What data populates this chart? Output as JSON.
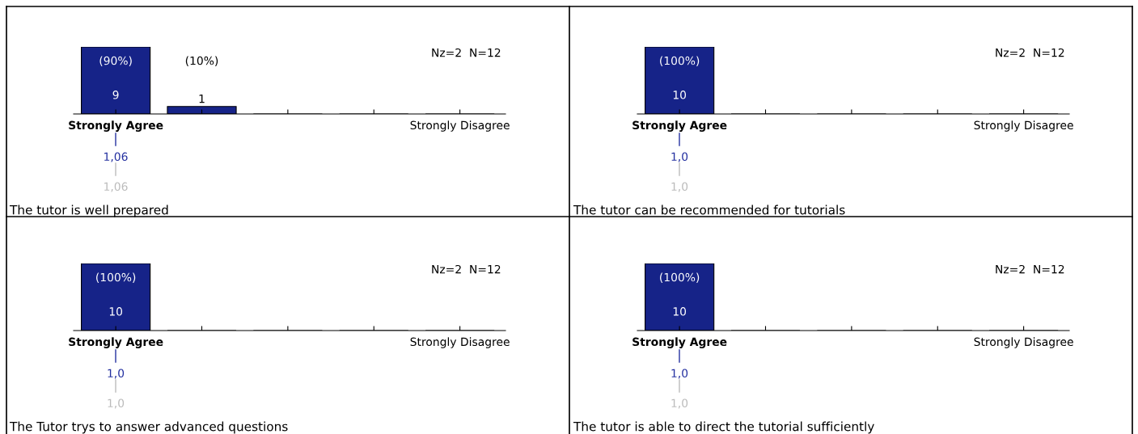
{
  "chart_data": [
    {
      "type": "bar",
      "title": "The tutor is well prepared",
      "categories": [
        "Strongly Agree",
        null,
        null,
        null,
        "Strongly Disagree"
      ],
      "values": [
        9,
        1,
        0,
        0,
        0
      ],
      "color": "#162388",
      "value_labels": [
        "9",
        "1",
        null,
        null,
        null
      ],
      "annotations": [
        "Nz=2  N=12",
        "1,06",
        "1,06",
        "(90%)",
        "(10%)"
      ]
    },
    {
      "type": "bar",
      "title": "The tutor can be recommended for tutorials",
      "categories": [
        "Strongly Agree",
        null,
        null,
        null,
        "Strongly Disagree"
      ],
      "values": [
        10,
        0,
        0,
        0,
        0
      ],
      "color": "#162388",
      "value_labels": [
        "10",
        null,
        null,
        null,
        null
      ],
      "annotations": [
        "Nz=2  N=12",
        "1,0",
        "1,0",
        "(100%)"
      ]
    },
    {
      "type": "bar",
      "title": "The Tutor trys to answer advanced questions",
      "categories": [
        "Strongly Agree",
        null,
        null,
        null,
        "Strongly Disagree"
      ],
      "values": [
        10,
        0,
        0,
        0,
        0
      ],
      "color": "#162388",
      "value_labels": [
        "10",
        null,
        null,
        null,
        null
      ],
      "annotations": [
        "Nz=2  N=12",
        "1,0",
        "1,0",
        "(100%)"
      ]
    },
    {
      "type": "bar",
      "title": "The tutor is able to direct the tutorial sufficiently",
      "categories": [
        "Strongly Agree",
        null,
        null,
        null,
        "Strongly Disagree"
      ],
      "values": [
        10,
        0,
        0,
        0,
        0
      ],
      "color": "#162388",
      "value_labels": [
        "10",
        null,
        null,
        null,
        null
      ],
      "annotations": [
        "Nz=2  N=12",
        "1,0",
        "1,0",
        "(100%)"
      ]
    }
  ]
}
